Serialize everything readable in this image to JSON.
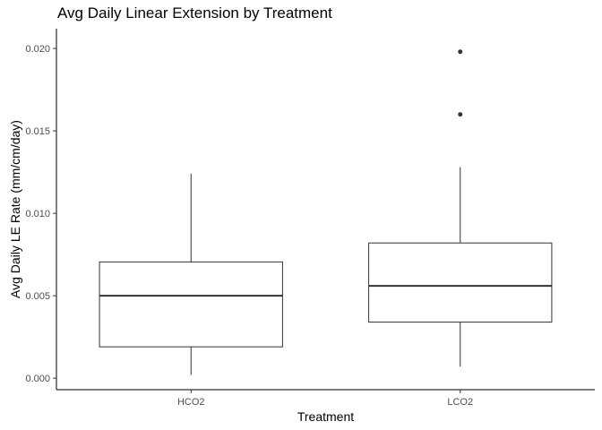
{
  "chart_data": {
    "type": "boxplot",
    "title": "Avg Daily Linear Extension by Treatment",
    "xlabel": "Treatment",
    "ylabel": "Avg Daily LE Rate (mm/cm/day)",
    "categories": [
      "HCO2",
      "LCO2"
    ],
    "ylim": [
      -0.0007,
      0.0212
    ],
    "y_ticks": [
      0.0,
      0.005,
      0.01,
      0.015,
      0.02
    ],
    "y_tick_labels": [
      "0.000",
      "0.005",
      "0.010",
      "0.015",
      "0.020"
    ],
    "grid": false,
    "boxes": [
      {
        "category": "HCO2",
        "whisker_low": 0.0002,
        "q1": 0.0019,
        "median": 0.005,
        "q3": 0.00705,
        "whisker_high": 0.0124,
        "outliers": []
      },
      {
        "category": "LCO2",
        "whisker_low": 0.0007,
        "q1": 0.0034,
        "median": 0.0056,
        "q3": 0.0082,
        "whisker_high": 0.0128,
        "outliers": [
          0.016,
          0.0198
        ]
      }
    ],
    "colors": {
      "box_fill": "#ffffff",
      "line": "#333333",
      "axis": "#000000",
      "point": "#333333"
    }
  }
}
